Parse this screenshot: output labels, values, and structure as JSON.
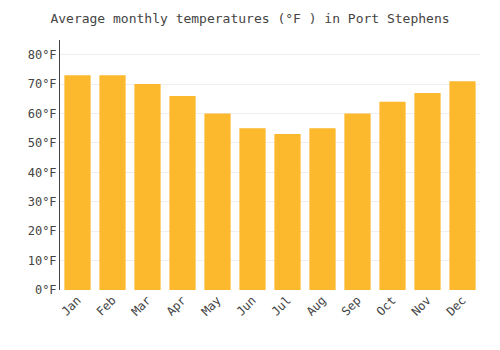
{
  "chart_data": {
    "type": "bar",
    "title": "Average monthly temperatures (°F ) in Port Stephens",
    "categories": [
      "Jan",
      "Feb",
      "Mar",
      "Apr",
      "May",
      "Jun",
      "Jul",
      "Aug",
      "Sep",
      "Oct",
      "Nov",
      "Dec"
    ],
    "values": [
      73,
      73,
      70,
      66,
      60,
      55,
      53,
      55,
      60,
      64,
      67,
      71
    ],
    "color": "#FDB92E",
    "ylim": [
      0,
      85
    ],
    "yticks": [
      {
        "value": 0,
        "label": "0°F"
      },
      {
        "value": 10,
        "label": "10°F"
      },
      {
        "value": 20,
        "label": "20°F"
      },
      {
        "value": 30,
        "label": "30°F"
      },
      {
        "value": 40,
        "label": "40°F"
      },
      {
        "value": 50,
        "label": "50°F"
      },
      {
        "value": 60,
        "label": "60°F"
      },
      {
        "value": 70,
        "label": "70°F"
      },
      {
        "value": 80,
        "label": "80°F"
      }
    ],
    "grid": true
  }
}
